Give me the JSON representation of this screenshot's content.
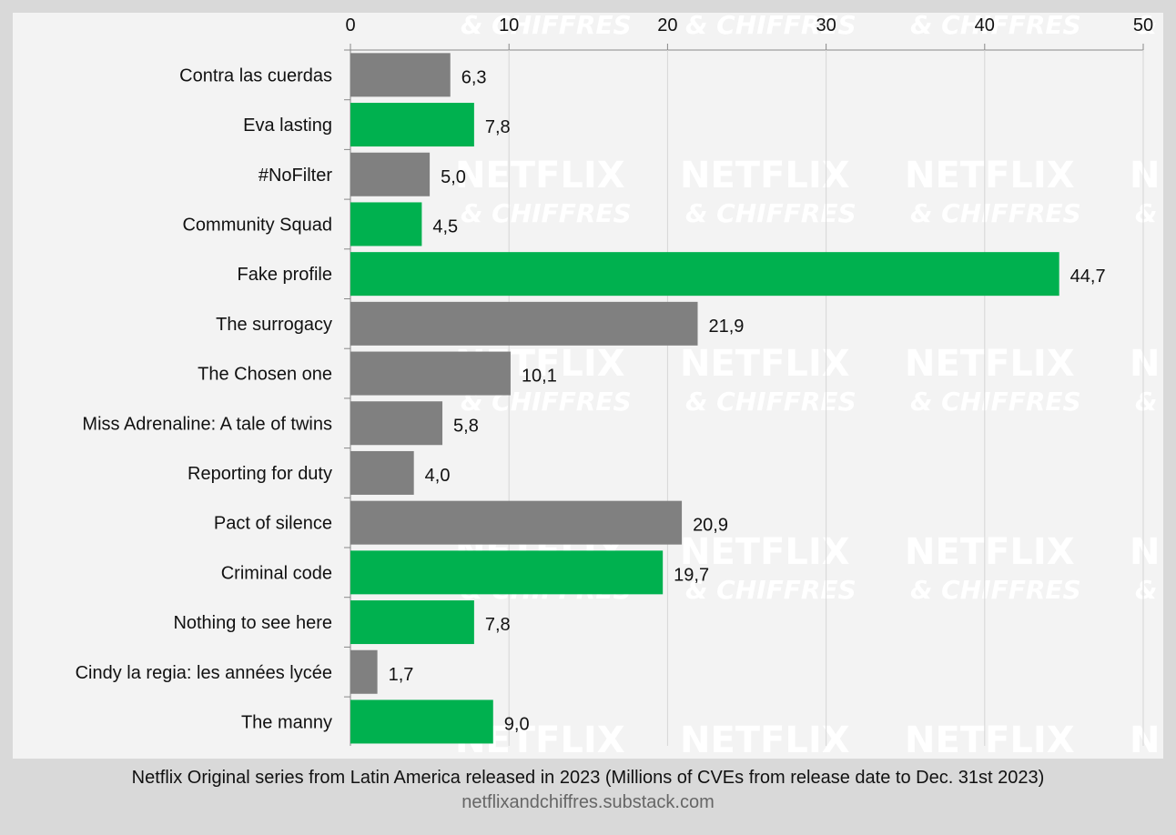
{
  "chart_data": {
    "type": "bar",
    "orientation": "horizontal",
    "categories": [
      "Contra las cuerdas",
      "Eva lasting",
      "#NoFilter",
      "Community Squad",
      "Fake profile",
      "The surrogacy",
      "The Chosen one",
      "Miss Adrenaline: A tale of twins",
      "Reporting for duty",
      "Pact of silence",
      "Criminal code",
      "Nothing to see here",
      "Cindy la regia: les années lycée",
      "The manny"
    ],
    "values": [
      6.3,
      7.8,
      5.0,
      4.5,
      44.7,
      21.9,
      10.1,
      5.8,
      4.0,
      20.9,
      19.7,
      7.8,
      1.7,
      9.0
    ],
    "value_labels": [
      "6,3",
      "7,8",
      "5,0",
      "4,5",
      "44,7",
      "21,9",
      "10,1",
      "5,8",
      "4,0",
      "20,9",
      "19,7",
      "7,8",
      "1,7",
      "9,0"
    ],
    "highlighted": [
      false,
      true,
      false,
      true,
      true,
      false,
      false,
      false,
      false,
      false,
      true,
      true,
      false,
      true
    ],
    "colors": {
      "highlight": "#00b14f",
      "default": "#808080"
    },
    "xlim": [
      0,
      50
    ],
    "xticks": [
      "0",
      "10",
      "20",
      "30",
      "40",
      "50"
    ],
    "x_axis_position": "top",
    "grid": true,
    "title": "Netflix Original series from Latin America released in 2023 (Millions of CVEs from release date to Dec. 31st 2023)",
    "source": "netflixandchiffres.substack.com",
    "watermark": [
      "NETFLIX",
      "& CHIFFRES"
    ]
  }
}
